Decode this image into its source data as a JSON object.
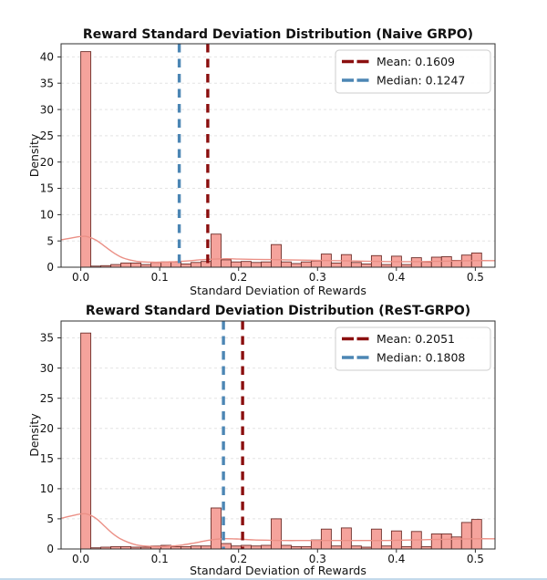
{
  "styles": {
    "bar_fill": "#F5A39C",
    "bar_edge": "#6E2F2A",
    "kde_color": "#EB9086",
    "mean_color": "#8B0F0F",
    "median_color": "#4C86B4",
    "grid_color": "#E4E4E4",
    "axis_color": "#2F2F2F",
    "text_color": "#111111",
    "legend_border": "#CCCCCC",
    "bottom_edge_line": "#B9D3E7"
  },
  "chart_data": [
    {
      "type": "bar",
      "subtype": "histogram+kde",
      "title": "Reward Standard Deviation Distribution (Naive GRPO)",
      "xlabel": "Standard Deviation of Rewards",
      "ylabel": "Density",
      "legend_labels": [
        "Mean: 0.1609",
        "Median: 0.1247"
      ],
      "legend_position": "upper right",
      "mean": 0.1609,
      "median": 0.1247,
      "bin_start": 0.0,
      "bin_width": 0.0127,
      "bin_heights": [
        41,
        0.2,
        0.3,
        0.5,
        0.8,
        0.8,
        0.5,
        0.9,
        1.0,
        1.0,
        0.6,
        0.9,
        1.1,
        6.3,
        1.4,
        1.0,
        1.1,
        0.9,
        1.0,
        4.3,
        1.0,
        0.7,
        1.0,
        1.2,
        2.5,
        0.8,
        2.4,
        0.9,
        0.6,
        2.2,
        0.5,
        2.1,
        0.5,
        1.8,
        1.0,
        1.9,
        2.0,
        1.3,
        2.3,
        2.7
      ],
      "kde": [
        [
          -0.025,
          5.2
        ],
        [
          0,
          5.85
        ],
        [
          0.01,
          5.75
        ],
        [
          0.02,
          5.1
        ],
        [
          0.03,
          4.0
        ],
        [
          0.04,
          2.9
        ],
        [
          0.05,
          2.0
        ],
        [
          0.06,
          1.45
        ],
        [
          0.07,
          1.15
        ],
        [
          0.08,
          1.0
        ],
        [
          0.09,
          0.95
        ],
        [
          0.1,
          0.95
        ],
        [
          0.11,
          1.0
        ],
        [
          0.12,
          1.05
        ],
        [
          0.13,
          1.15
        ],
        [
          0.14,
          1.25
        ],
        [
          0.15,
          1.4
        ],
        [
          0.16,
          1.5
        ],
        [
          0.17,
          1.55
        ],
        [
          0.18,
          1.6
        ],
        [
          0.19,
          1.6
        ],
        [
          0.2,
          1.55
        ],
        [
          0.22,
          1.5
        ],
        [
          0.24,
          1.45
        ],
        [
          0.26,
          1.4
        ],
        [
          0.28,
          1.35
        ],
        [
          0.3,
          1.3
        ],
        [
          0.32,
          1.25
        ],
        [
          0.34,
          1.2
        ],
        [
          0.36,
          1.15
        ],
        [
          0.38,
          1.1
        ],
        [
          0.4,
          1.05
        ],
        [
          0.42,
          1.05
        ],
        [
          0.44,
          1.1
        ],
        [
          0.46,
          1.15
        ],
        [
          0.48,
          1.2
        ],
        [
          0.5,
          1.25
        ],
        [
          0.525,
          1.25
        ]
      ],
      "xlim": [
        -0.025,
        0.525
      ],
      "ylim": [
        0,
        42.5
      ],
      "x_ticks": [
        0.0,
        0.1,
        0.2,
        0.3,
        0.4,
        0.5
      ],
      "x_tick_labels": [
        "0.0",
        "0.1",
        "0.2",
        "0.3",
        "0.4",
        "0.5"
      ],
      "y_ticks": [
        0,
        5,
        10,
        15,
        20,
        25,
        30,
        35,
        40
      ],
      "y_tick_labels": [
        "0",
        "5",
        "10",
        "15",
        "20",
        "25",
        "30",
        "35",
        "40"
      ],
      "grid": "horizontal-dashed"
    },
    {
      "type": "bar",
      "subtype": "histogram+kde",
      "title": "Reward Standard Deviation Distribution (ReST-GRPO)",
      "xlabel": "Standard Deviation of Rewards",
      "ylabel": "Density",
      "legend_labels": [
        "Mean: 0.2051",
        "Median: 0.1808"
      ],
      "legend_position": "upper right",
      "mean": 0.2051,
      "median": 0.1808,
      "bin_start": 0.0,
      "bin_width": 0.0127,
      "bin_heights": [
        35.8,
        0.2,
        0.3,
        0.4,
        0.4,
        0.3,
        0.3,
        0.5,
        0.6,
        0.4,
        0.4,
        0.5,
        0.5,
        6.8,
        0.9,
        0.5,
        0.6,
        0.5,
        0.6,
        5.0,
        0.6,
        0.4,
        0.4,
        1.5,
        3.3,
        0.5,
        3.5,
        0.5,
        0.3,
        3.3,
        0.5,
        3.0,
        0.4,
        2.9,
        0.4,
        2.5,
        2.5,
        2.0,
        4.4,
        4.9
      ],
      "kde": [
        [
          -0.025,
          5.1
        ],
        [
          0,
          5.8
        ],
        [
          0.01,
          5.7
        ],
        [
          0.02,
          5.0
        ],
        [
          0.03,
          3.8
        ],
        [
          0.04,
          2.6
        ],
        [
          0.05,
          1.7
        ],
        [
          0.06,
          1.1
        ],
        [
          0.07,
          0.7
        ],
        [
          0.08,
          0.5
        ],
        [
          0.09,
          0.42
        ],
        [
          0.1,
          0.4
        ],
        [
          0.11,
          0.45
        ],
        [
          0.12,
          0.55
        ],
        [
          0.13,
          0.7
        ],
        [
          0.14,
          0.9
        ],
        [
          0.15,
          1.15
        ],
        [
          0.16,
          1.4
        ],
        [
          0.17,
          1.6
        ],
        [
          0.18,
          1.7
        ],
        [
          0.19,
          1.7
        ],
        [
          0.2,
          1.65
        ],
        [
          0.22,
          1.5
        ],
        [
          0.24,
          1.45
        ],
        [
          0.26,
          1.4
        ],
        [
          0.28,
          1.4
        ],
        [
          0.3,
          1.4
        ],
        [
          0.32,
          1.4
        ],
        [
          0.34,
          1.4
        ],
        [
          0.36,
          1.4
        ],
        [
          0.38,
          1.4
        ],
        [
          0.4,
          1.45
        ],
        [
          0.42,
          1.5
        ],
        [
          0.44,
          1.55
        ],
        [
          0.46,
          1.6
        ],
        [
          0.48,
          1.65
        ],
        [
          0.5,
          1.7
        ],
        [
          0.525,
          1.7
        ]
      ],
      "xlim": [
        -0.025,
        0.525
      ],
      "ylim": [
        0,
        37.8
      ],
      "x_ticks": [
        0.0,
        0.1,
        0.2,
        0.3,
        0.4,
        0.5
      ],
      "x_tick_labels": [
        "0.0",
        "0.1",
        "0.2",
        "0.3",
        "0.4",
        "0.5"
      ],
      "y_ticks": [
        0,
        5,
        10,
        15,
        20,
        25,
        30,
        35
      ],
      "y_tick_labels": [
        "0",
        "5",
        "10",
        "15",
        "20",
        "25",
        "30",
        "35"
      ],
      "grid": "horizontal-dashed"
    }
  ]
}
